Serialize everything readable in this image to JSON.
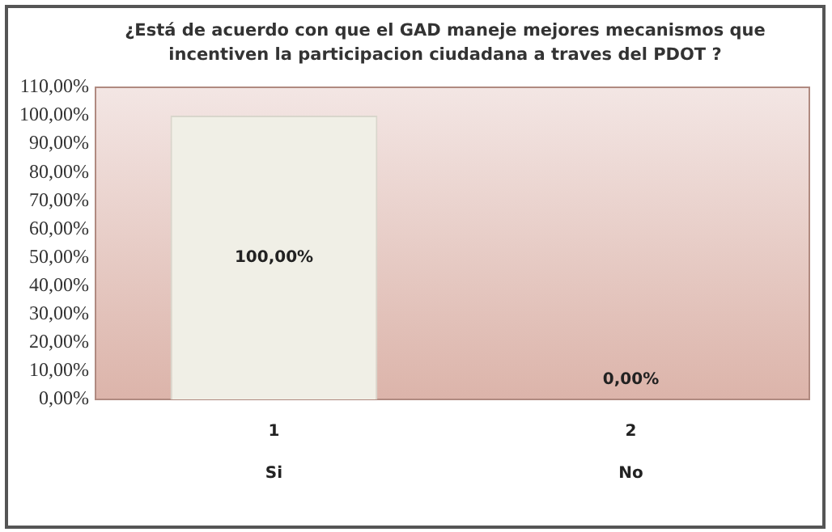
{
  "chart_data": {
    "type": "bar",
    "title": "¿Está de acuerdo con que el GAD maneje mejores mecanismos que incentiven la participacion ciudadana a traves del PDOT ?",
    "categories": [
      "1",
      "2"
    ],
    "annotations": [
      "Si",
      "No"
    ],
    "values": [
      100,
      0
    ],
    "color": "#f0efe6",
    "value_labels": [
      "100,00%",
      "0,00%"
    ],
    "ylim": [
      0,
      110
    ],
    "yticks": [
      {
        "value": 0,
        "label": "0,00%"
      },
      {
        "value": 10,
        "label": "10,00%"
      },
      {
        "value": 20,
        "label": "20,00%"
      },
      {
        "value": 30,
        "label": "30,00%"
      },
      {
        "value": 40,
        "label": "40,00%"
      },
      {
        "value": 50,
        "label": "50,00%"
      },
      {
        "value": 60,
        "label": "60,00%"
      },
      {
        "value": 70,
        "label": "70,00%"
      },
      {
        "value": 80,
        "label": "80,00%"
      },
      {
        "value": 90,
        "label": "90,00%"
      },
      {
        "value": 100,
        "label": "100,00%"
      },
      {
        "value": 110,
        "label": "110,00%"
      }
    ],
    "grid": false,
    "legend": false
  }
}
